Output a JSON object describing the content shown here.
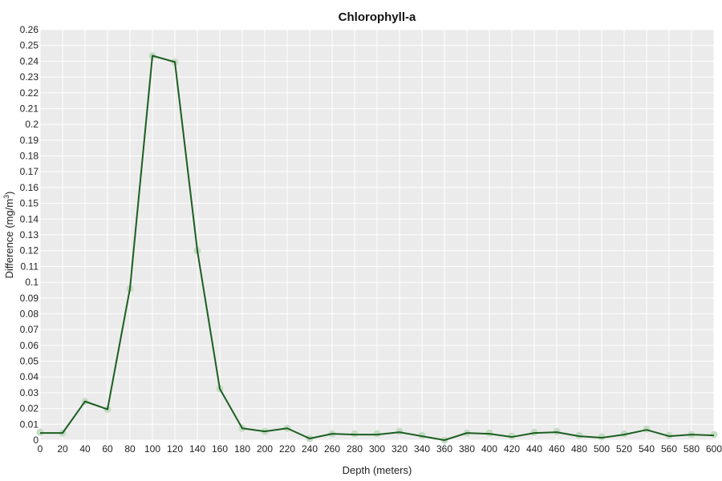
{
  "chart_data": {
    "type": "line",
    "title": "Chlorophyll-a",
    "xlabel": "Depth (meters)",
    "ylabel_main": "Difference (mg/m",
    "ylabel_sup": "3",
    "ylabel_close": ")",
    "xlim": [
      0,
      600
    ],
    "ylim": [
      0,
      0.26
    ],
    "x_ticks": [
      0,
      20,
      40,
      60,
      80,
      100,
      120,
      140,
      160,
      180,
      200,
      220,
      240,
      260,
      280,
      300,
      320,
      340,
      360,
      380,
      400,
      420,
      440,
      460,
      480,
      500,
      520,
      540,
      560,
      580,
      600
    ],
    "y_ticks": [
      0,
      0.01,
      0.02,
      0.03,
      0.04,
      0.05,
      0.06,
      0.07,
      0.08,
      0.09,
      0.1,
      0.11,
      0.12,
      0.13,
      0.14,
      0.15,
      0.16,
      0.17,
      0.18,
      0.19,
      0.2,
      0.21,
      0.22,
      0.23,
      0.24,
      0.25,
      0.26
    ],
    "grid": true,
    "colors": {
      "plot_background": "#ebebeb",
      "grid": "#ffffff",
      "line": "#1b5e20",
      "points": "#c5dcc5"
    },
    "series": [
      {
        "x": [
          0,
          20,
          40,
          60,
          80,
          100,
          120,
          140,
          160,
          180,
          200,
          220,
          240,
          260,
          280,
          300,
          320,
          340,
          360,
          380,
          400,
          420,
          440,
          460,
          480,
          500,
          520,
          540,
          560,
          580,
          600
        ],
        "points": [
          0.005,
          0.0045,
          0.0245,
          0.0195,
          0.096,
          0.2435,
          0.2395,
          0.12,
          0.0325,
          0.0075,
          0.0055,
          0.0075,
          0.001,
          0.004,
          0.004,
          0.004,
          0.0055,
          0.003,
          0.0,
          0.0045,
          0.0045,
          0.0025,
          0.005,
          0.0055,
          0.003,
          0.002,
          0.004,
          0.007,
          0.003,
          0.0035,
          0.0035
        ],
        "line": [
          0.0045,
          0.0045,
          0.0245,
          0.0195,
          0.096,
          0.2435,
          0.2395,
          0.12,
          0.0325,
          0.0075,
          0.0055,
          0.0075,
          0.001,
          0.004,
          0.0035,
          0.0035,
          0.005,
          0.0025,
          0.0,
          0.0045,
          0.004,
          0.002,
          0.0045,
          0.005,
          0.0025,
          0.0015,
          0.0035,
          0.0065,
          0.0025,
          0.0035,
          0.003
        ]
      }
    ]
  }
}
